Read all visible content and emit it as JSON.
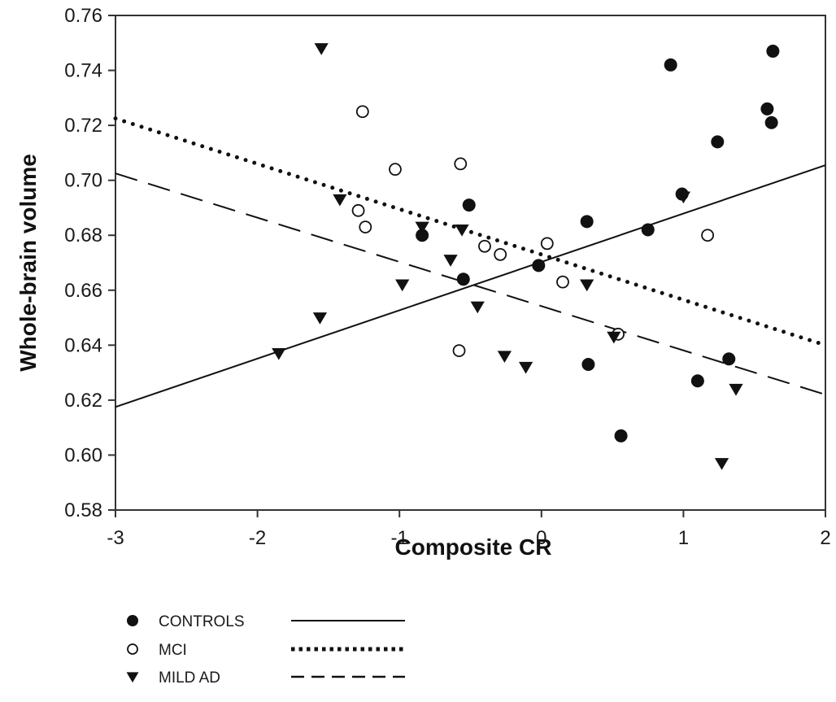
{
  "chart_data": {
    "type": "scatter",
    "title": "",
    "xlabel": "Composite CR",
    "ylabel": "Whole-brain volume",
    "xlim": [
      -3,
      2
    ],
    "ylim": [
      0.58,
      0.76
    ],
    "xticks": [
      -3,
      -2,
      -1,
      0,
      1,
      2
    ],
    "xtick_labels": [
      "-3",
      "-2",
      "-1",
      "0",
      "1",
      "2"
    ],
    "yticks": [
      0.58,
      0.6,
      0.62,
      0.64,
      0.66,
      0.68,
      0.7,
      0.72,
      0.74,
      0.76
    ],
    "ytick_labels": [
      "0.58",
      "0.60",
      "0.62",
      "0.64",
      "0.66",
      "0.68",
      "0.70",
      "0.72",
      "0.74",
      "0.76"
    ],
    "grid": false,
    "legend_position": "bottom-left",
    "series": [
      {
        "name": "CONTROLS",
        "marker": "filled-circle",
        "line_style": "solid",
        "fit_line": {
          "x": [
            -3,
            2
          ],
          "y": [
            0.6175,
            0.7055
          ]
        },
        "points": [
          [
            -0.51,
            0.691
          ],
          [
            -0.84,
            0.68
          ],
          [
            -0.55,
            0.664
          ],
          [
            -0.02,
            0.669
          ],
          [
            0.32,
            0.685
          ],
          [
            0.33,
            0.633
          ],
          [
            0.56,
            0.607
          ],
          [
            0.75,
            0.682
          ],
          [
            0.91,
            0.742
          ],
          [
            0.99,
            0.695
          ],
          [
            1.1,
            0.627
          ],
          [
            1.24,
            0.714
          ],
          [
            1.32,
            0.635
          ],
          [
            1.59,
            0.726
          ],
          [
            1.62,
            0.721
          ],
          [
            1.63,
            0.747
          ]
        ]
      },
      {
        "name": "MCI",
        "marker": "open-circle",
        "line_style": "dotted",
        "fit_line": {
          "x": [
            -3,
            2
          ],
          "y": [
            0.7225,
            0.64
          ]
        },
        "points": [
          [
            -1.26,
            0.725
          ],
          [
            -1.03,
            0.704
          ],
          [
            -1.29,
            0.689
          ],
          [
            -1.24,
            0.683
          ],
          [
            -0.57,
            0.706
          ],
          [
            -0.4,
            0.676
          ],
          [
            -0.29,
            0.673
          ],
          [
            0.04,
            0.677
          ],
          [
            0.15,
            0.663
          ],
          [
            -0.58,
            0.638
          ],
          [
            0.54,
            0.644
          ],
          [
            1.17,
            0.68
          ]
        ]
      },
      {
        "name": "MILD AD",
        "marker": "filled-triangle-down",
        "line_style": "dashed",
        "fit_line": {
          "x": [
            -3,
            2
          ],
          "y": [
            0.7025,
            0.622
          ]
        },
        "points": [
          [
            -1.55,
            0.748
          ],
          [
            -1.42,
            0.693
          ],
          [
            -0.84,
            0.683
          ],
          [
            -0.56,
            0.682
          ],
          [
            -0.64,
            0.671
          ],
          [
            -0.98,
            0.662
          ],
          [
            -1.56,
            0.65
          ],
          [
            -1.85,
            0.637
          ],
          [
            -0.45,
            0.654
          ],
          [
            -0.26,
            0.636
          ],
          [
            -0.11,
            0.632
          ],
          [
            0.32,
            0.662
          ],
          [
            0.51,
            0.643
          ],
          [
            1.0,
            0.694
          ],
          [
            1.37,
            0.624
          ],
          [
            1.27,
            0.597
          ]
        ]
      }
    ],
    "colors": {
      "ink": "#111111",
      "background": "#ffffff"
    }
  }
}
